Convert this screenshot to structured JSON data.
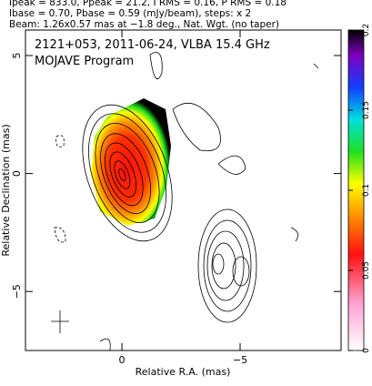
{
  "header": {
    "lines": [
      "Ipeak = 833.0, Ppeak = 21.2, I RMS = 0.16, P RMS = 0.18",
      "Ibase = 0.70, Pbase = 0.59 (mJy/beam), steps: x 2",
      "Beam: 1.26x0.57 mas at −1.8 deg., Nat. Wgt. (no taper)"
    ]
  },
  "chart_data": {
    "type": "contour-map",
    "title": "2121+053, 2011-06-24, VLBA 15.4 GHz",
    "subtitle": "MOJAVE Program",
    "xlabel": "Relative R.A. (mas)",
    "ylabel": "Relative Declination (mas)",
    "xlim": [
      4.08,
      -9.27
    ],
    "ylim": [
      -7.5,
      6.08
    ],
    "xticks": [
      0,
      {
        "value": -5,
        "label": "−5"
      }
    ],
    "yticks": [
      {
        "value": -5,
        "label": "−5"
      },
      0,
      5
    ],
    "colorbar": {
      "lim": [
        0,
        0.2
      ],
      "ticks": [
        0,
        0.05,
        0.1,
        0.15,
        0.2
      ]
    }
  }
}
